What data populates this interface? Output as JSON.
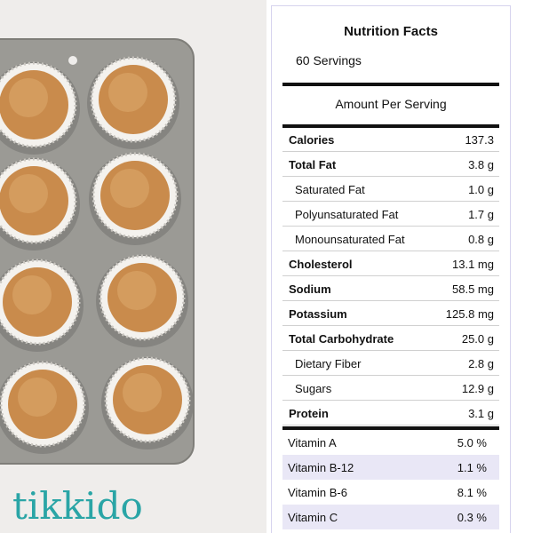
{
  "header": {
    "title": "Nutrition Facts",
    "servings": "60 Servings"
  },
  "subheader": "Amount Per Serving",
  "nutrients": [
    {
      "name": "Calories",
      "amount": "137.3",
      "bold": true
    },
    {
      "name": "Total Fat",
      "amount": "3.8 g",
      "bold": true
    },
    {
      "name": "Saturated Fat",
      "amount": "1.0 g",
      "bold": false
    },
    {
      "name": "Polyunsaturated Fat",
      "amount": "1.7 g",
      "bold": false
    },
    {
      "name": "Monounsaturated Fat",
      "amount": "0.8 g",
      "bold": false
    },
    {
      "name": "Cholesterol",
      "amount": "13.1 mg",
      "bold": true
    },
    {
      "name": "Sodium",
      "amount": "58.5 mg",
      "bold": true
    },
    {
      "name": "Potassium",
      "amount": "125.8 mg",
      "bold": true
    },
    {
      "name": "Total Carbohydrate",
      "amount": "25.0 g",
      "bold": true
    },
    {
      "name": "Dietary Fiber",
      "amount": "2.8 g",
      "bold": false
    },
    {
      "name": "Sugars",
      "amount": "12.9 g",
      "bold": false
    },
    {
      "name": "Protein",
      "amount": "3.1 g",
      "bold": true
    }
  ],
  "vitamins": [
    {
      "name": "Vitamin A",
      "amount": "5.0 %"
    },
    {
      "name": "Vitamin B-12",
      "amount": "1.1 %"
    },
    {
      "name": "Vitamin B-6",
      "amount": "8.1 %"
    },
    {
      "name": "Vitamin C",
      "amount": "0.3 %"
    }
  ],
  "logo": "tikkido"
}
